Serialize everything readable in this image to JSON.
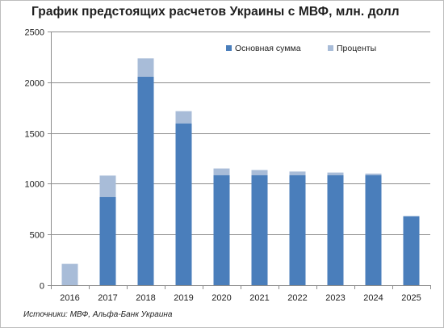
{
  "source_note": "Источники: МВФ, Альфа-Банк Украина",
  "colors": {
    "principal": "#4a7ebb",
    "interest": "#a8bcd8",
    "grid": "#8c8c8c",
    "axis": "#8c8c8c"
  },
  "chart_data": {
    "type": "bar",
    "stacked": true,
    "title": "График предстоящих расчетов Украины с МВФ, млн. долл",
    "xlabel": "",
    "ylabel": "",
    "categories": [
      "2016",
      "2017",
      "2018",
      "2019",
      "2020",
      "2021",
      "2022",
      "2023",
      "2024",
      "2025"
    ],
    "series": [
      {
        "name": "Основная сумма",
        "color": "#4a7ebb",
        "values": [
          0,
          870,
          2055,
          1595,
          1085,
          1085,
          1085,
          1085,
          1085,
          680
        ]
      },
      {
        "name": "Проценты",
        "color": "#a8bcd8",
        "values": [
          210,
          210,
          180,
          120,
          65,
          50,
          35,
          25,
          15,
          0
        ]
      }
    ],
    "ylim": [
      0,
      2500
    ],
    "yticks": [
      0,
      500,
      1000,
      1500,
      2000,
      2500
    ],
    "grid": true,
    "legend": "top-right"
  }
}
